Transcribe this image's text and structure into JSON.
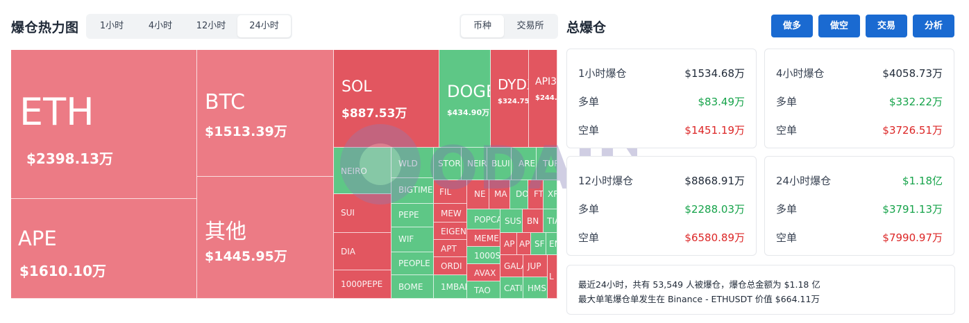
{
  "heatmap": {
    "title": "爆仓热力图",
    "time_tabs": [
      {
        "label": "1小时",
        "active": false
      },
      {
        "label": "4小时",
        "active": false
      },
      {
        "label": "12小时",
        "active": false
      },
      {
        "label": "24小时",
        "active": true
      }
    ],
    "group_tabs": [
      {
        "label": "币种",
        "active": true
      },
      {
        "label": "交易所",
        "active": false
      }
    ],
    "colors": {
      "pink": "#ec7b85",
      "red": "#e25660",
      "green": "#5ec786"
    },
    "cells": [
      {
        "name": "ETH",
        "value": "$2398.13万"
      },
      {
        "name": "APE",
        "value": "$1610.10万"
      },
      {
        "name": "BTC",
        "value": "$1513.39万"
      },
      {
        "name": "其他",
        "value": "$1445.95万"
      },
      {
        "name": "SOL",
        "value": "$887.53万"
      },
      {
        "name": "DOGE",
        "value": "$434.90万"
      },
      {
        "name": "DYDX",
        "value": "$324.75万"
      },
      {
        "name": "API3",
        "value": "$244."
      },
      {
        "name": "NEIRO"
      },
      {
        "name": "WLD"
      },
      {
        "name": "STOR"
      },
      {
        "name": "NEIR"
      },
      {
        "name": "BLUI"
      },
      {
        "name": "ARE"
      },
      {
        "name": "TUR"
      },
      {
        "name": "BIGTIME"
      },
      {
        "name": "FIL"
      },
      {
        "name": "NE"
      },
      {
        "name": "MA"
      },
      {
        "name": "DO"
      },
      {
        "name": "FT"
      },
      {
        "name": "XR"
      },
      {
        "name": "SUI"
      },
      {
        "name": "PEPE"
      },
      {
        "name": "MEW"
      },
      {
        "name": "POPCA"
      },
      {
        "name": "SUS"
      },
      {
        "name": "BN"
      },
      {
        "name": "TIA"
      },
      {
        "name": "DIA"
      },
      {
        "name": "WIF"
      },
      {
        "name": "EIGEN"
      },
      {
        "name": "MEME"
      },
      {
        "name": "AP"
      },
      {
        "name": "AP"
      },
      {
        "name": "SF"
      },
      {
        "name": "EN"
      },
      {
        "name": "APT"
      },
      {
        "name": "1000S"
      },
      {
        "name": "PEOPLE"
      },
      {
        "name": "ORDI"
      },
      {
        "name": "AVAX"
      },
      {
        "name": "GALA"
      },
      {
        "name": "JUP"
      },
      {
        "name": "1000PEPE"
      },
      {
        "name": "BOME"
      },
      {
        "name": "1MBAE"
      },
      {
        "name": "TAO"
      },
      {
        "name": "CATI"
      },
      {
        "name": "HMS"
      },
      {
        "name": "L"
      }
    ]
  },
  "liquidation": {
    "title": "总爆仓",
    "buttons": [
      "做多",
      "做空",
      "交易",
      "分析"
    ],
    "cards": [
      {
        "title": "1小时爆仓",
        "total": "$1534.68万",
        "long_label": "多单",
        "long": "$83.49万",
        "short_label": "空单",
        "short": "$1451.19万"
      },
      {
        "title": "4小时爆仓",
        "total": "$4058.73万",
        "long_label": "多单",
        "long": "$332.22万",
        "short_label": "空单",
        "short": "$3726.51万"
      },
      {
        "title": "12小时爆仓",
        "total": "$8868.91万",
        "long_label": "多单",
        "long": "$2288.03万",
        "short_label": "空单",
        "short": "$6580.89万"
      },
      {
        "title": "24小时爆仓",
        "total": "$1.18亿",
        "long_label": "多单",
        "long": "$3791.13万",
        "short_label": "空单",
        "short": "$7990.97万"
      }
    ],
    "summary_line1": "最近24小时，共有 53,549 人被爆仓，爆仓总金额为 $1.18 亿",
    "summary_line2": "最大单笔爆仓单发生在 Binance - ETHUSDT 价值 $664.11万"
  },
  "watermark_text": "ODAILY"
}
